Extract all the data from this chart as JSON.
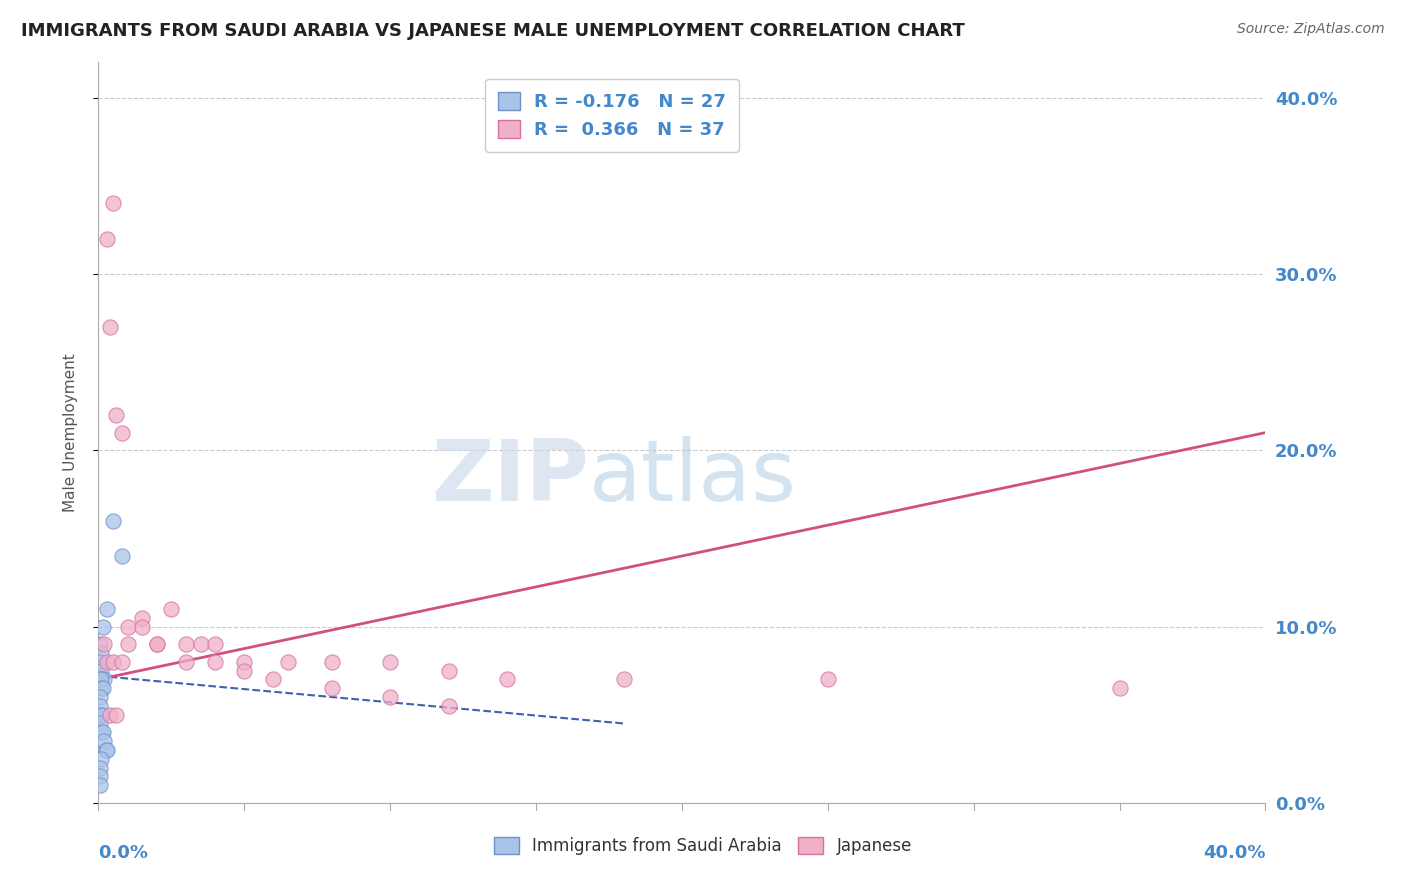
{
  "title": "IMMIGRANTS FROM SAUDI ARABIA VS JAPANESE MALE UNEMPLOYMENT CORRELATION CHART",
  "source": "Source: ZipAtlas.com",
  "ylabel": "Male Unemployment",
  "ytick_labels": [
    "0.0%",
    "10.0%",
    "20.0%",
    "30.0%",
    "40.0%"
  ],
  "ytick_values": [
    0,
    10,
    20,
    30,
    40
  ],
  "xlim": [
    0,
    40
  ],
  "ylim": [
    0,
    42
  ],
  "watermark_zip": "ZIP",
  "watermark_atlas": "atlas",
  "watermark_color_zip": "#c8d8e8",
  "watermark_color_atlas": "#a8c8e0",
  "blue_scatter": {
    "x": [
      0.5,
      0.8,
      0.3,
      0.15,
      0.05,
      0.1,
      0.05,
      0.1,
      0.2,
      0.05,
      0.1,
      0.1,
      0.15,
      0.05,
      0.05,
      0.08,
      0.12,
      0.05,
      0.08,
      0.15,
      0.2,
      0.25,
      0.3,
      0.1,
      0.05,
      0.05,
      0.05
    ],
    "y": [
      16,
      14,
      11,
      10,
      9,
      8.5,
      8,
      7.5,
      7,
      7,
      7,
      6.5,
      6.5,
      6,
      5.5,
      5,
      5,
      4.5,
      4,
      4,
      3.5,
      3,
      3,
      2.5,
      2,
      1.5,
      1
    ],
    "color": "#aac4e8",
    "edgecolor": "#7090c8",
    "alpha": 0.75,
    "size": 120
  },
  "pink_scatter": {
    "x": [
      0.3,
      0.4,
      0.5,
      0.6,
      0.8,
      1.0,
      1.5,
      2.0,
      2.5,
      3.0,
      3.5,
      4.0,
      5.0,
      6.5,
      8.0,
      10.0,
      12.0,
      14.0,
      18.0,
      25.0,
      35.0,
      0.2,
      0.3,
      0.5,
      0.8,
      1.0,
      1.5,
      2.0,
      3.0,
      4.0,
      5.0,
      6.0,
      8.0,
      10.0,
      12.0,
      0.4,
      0.6
    ],
    "y": [
      32,
      27,
      34,
      22,
      21,
      10,
      10.5,
      9,
      11,
      9,
      9,
      9,
      8,
      8,
      8,
      8,
      7.5,
      7,
      7,
      7,
      6.5,
      9,
      8,
      8,
      8,
      9,
      10,
      9,
      8,
      8,
      7.5,
      7,
      6.5,
      6,
      5.5,
      5,
      5
    ],
    "color": "#f0b0c8",
    "edgecolor": "#d870a0",
    "alpha": 0.75,
    "size": 120
  },
  "blue_line": {
    "x_start": 0.0,
    "y_start": 7.2,
    "x_end": 18.0,
    "y_end": 4.5,
    "color": "#4060b0",
    "linewidth": 1.5
  },
  "pink_line": {
    "x_start": 0.0,
    "y_start": 7.0,
    "x_end": 40.0,
    "y_end": 21.0,
    "color": "#d05080",
    "linewidth": 2.0
  },
  "grid_color": "#cccccc",
  "background_color": "#ffffff",
  "title_color": "#222222",
  "axis_color": "#4488cc",
  "title_fontsize": 13,
  "source_fontsize": 10
}
